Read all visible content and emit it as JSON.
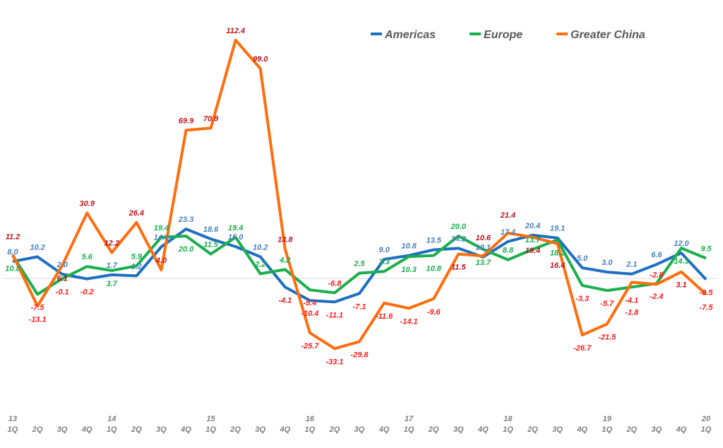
{
  "chart_data": {
    "type": "line",
    "title": "",
    "xlabel": "",
    "ylabel": "",
    "grid": false,
    "legend_position": "top-right",
    "ylim": [
      -55,
      130
    ],
    "categories": [
      {
        "year": "13",
        "q": "1Q"
      },
      {
        "year": "",
        "q": "2Q"
      },
      {
        "year": "",
        "q": "3Q"
      },
      {
        "year": "",
        "q": "4Q"
      },
      {
        "year": "14",
        "q": "1Q"
      },
      {
        "year": "",
        "q": "2Q"
      },
      {
        "year": "",
        "q": "3Q"
      },
      {
        "year": "",
        "q": "4Q"
      },
      {
        "year": "15",
        "q": "1Q"
      },
      {
        "year": "",
        "q": "2Q"
      },
      {
        "year": "",
        "q": "3Q"
      },
      {
        "year": "",
        "q": "4Q"
      },
      {
        "year": "16",
        "q": "1Q"
      },
      {
        "year": "",
        "q": "2Q"
      },
      {
        "year": "",
        "q": "3Q"
      },
      {
        "year": "",
        "q": "4Q"
      },
      {
        "year": "17",
        "q": "1Q"
      },
      {
        "year": "",
        "q": "2Q"
      },
      {
        "year": "",
        "q": "3Q"
      },
      {
        "year": "",
        "q": "4Q"
      },
      {
        "year": "18",
        "q": "1Q"
      },
      {
        "year": "",
        "q": "2Q"
      },
      {
        "year": "",
        "q": "3Q"
      },
      {
        "year": "",
        "q": "4Q"
      },
      {
        "year": "19",
        "q": "1Q"
      },
      {
        "year": "",
        "q": "2Q"
      },
      {
        "year": "",
        "q": "3Q"
      },
      {
        "year": "",
        "q": "4Q"
      },
      {
        "year": "20",
        "q": "1Q"
      }
    ],
    "series": [
      {
        "name": "Americas",
        "color": "#1f6fc0",
        "label_color": "#4a7fc1",
        "values": [
          8.0,
          10.2,
          2.0,
          -0.2,
          1.7,
          1.2,
          14.9,
          23.3,
          18.6,
          15.0,
          10.2,
          -4.1,
          -10.4,
          -11.1,
          -7.1,
          9.0,
          10.8,
          13.5,
          14.2,
          10.1,
          17.4,
          20.4,
          19.1,
          5.0,
          3.0,
          2.1,
          6.6,
          12.0,
          -0.5
        ]
      },
      {
        "name": "Europe",
        "color": "#1aae4c",
        "label_color": "#1aae4c",
        "values": [
          10.8,
          -7.5,
          -0.1,
          5.6,
          3.7,
          5.9,
          19.4,
          20.0,
          11.5,
          19.4,
          2.2,
          4.2,
          -5.4,
          -6.8,
          2.5,
          3.3,
          10.3,
          10.8,
          20.0,
          13.7,
          8.8,
          13.7,
          18.2,
          -3.3,
          -5.7,
          -4.1,
          -2.4,
          14.3,
          9.5
        ]
      },
      {
        "name": "Greater China",
        "color": "#ff6d0d",
        "label_color": "#c0141c",
        "values": [
          11.2,
          -13.1,
          6.1,
          30.9,
          12.2,
          26.4,
          4.0,
          69.9,
          70.9,
          112.4,
          99.0,
          13.8,
          -25.7,
          -33.1,
          -29.8,
          -11.6,
          -14.1,
          -9.6,
          11.5,
          10.6,
          21.4,
          19.4,
          16.4,
          -26.7,
          -21.5,
          -1.8,
          -2.8,
          3.1,
          -7.5
        ]
      }
    ],
    "negative_label_color": "#ff1a1a",
    "axis_color": "#d9d9d9",
    "tick_color": "#7f7f7f"
  }
}
